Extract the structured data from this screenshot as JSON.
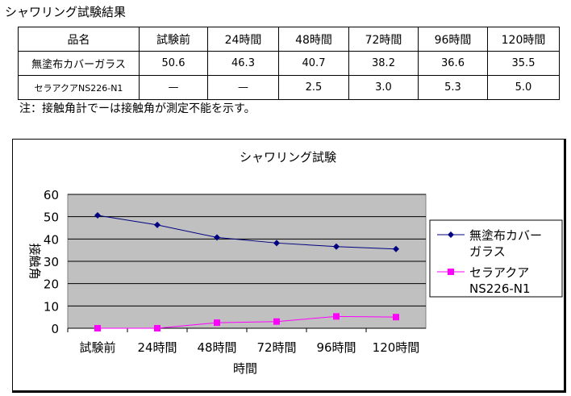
{
  "title": "シャワリング試験結果",
  "table": {
    "headers": [
      "品名",
      "試験前",
      "24時間",
      "48時間",
      "72時間",
      "96時間",
      "120時間"
    ],
    "rows": [
      [
        "無塗布カバーガラス",
        "50.6",
        "46.3",
        "40.7",
        "38.2",
        "36.6",
        "35.5"
      ],
      [
        "セラアクアNS226-N1",
        "—",
        "—",
        "2.5",
        "3.0",
        "5.3",
        "5.0"
      ]
    ]
  },
  "note": "注：接触角計でーは接触角が測定不能を示す。",
  "chart_data": {
    "type": "line",
    "title": "シャワリング試験",
    "xlabel": "時間",
    "ylabel": "接触角",
    "categories": [
      "試験前",
      "24時間",
      "48時間",
      "72時間",
      "96時間",
      "120時間"
    ],
    "ylim": [
      0,
      60
    ],
    "yticks": [
      0,
      10,
      20,
      30,
      40,
      50,
      60
    ],
    "grid": true,
    "legend": "right",
    "series": [
      {
        "name": "無塗布カバーガラス",
        "name_lines": [
          "無塗布カバー",
          "ガラス"
        ],
        "values": [
          50.6,
          46.3,
          40.7,
          38.2,
          36.6,
          35.5
        ],
        "color": "#000080",
        "marker": "diamond"
      },
      {
        "name": "セラアクアNS226-N1",
        "name_lines": [
          "セラアクア",
          "NS226-N1"
        ],
        "values": [
          0,
          0,
          2.5,
          3.0,
          5.3,
          5.0
        ],
        "color": "#FF00FF",
        "marker": "square"
      }
    ],
    "plot_bg": "#C0C0C0"
  }
}
